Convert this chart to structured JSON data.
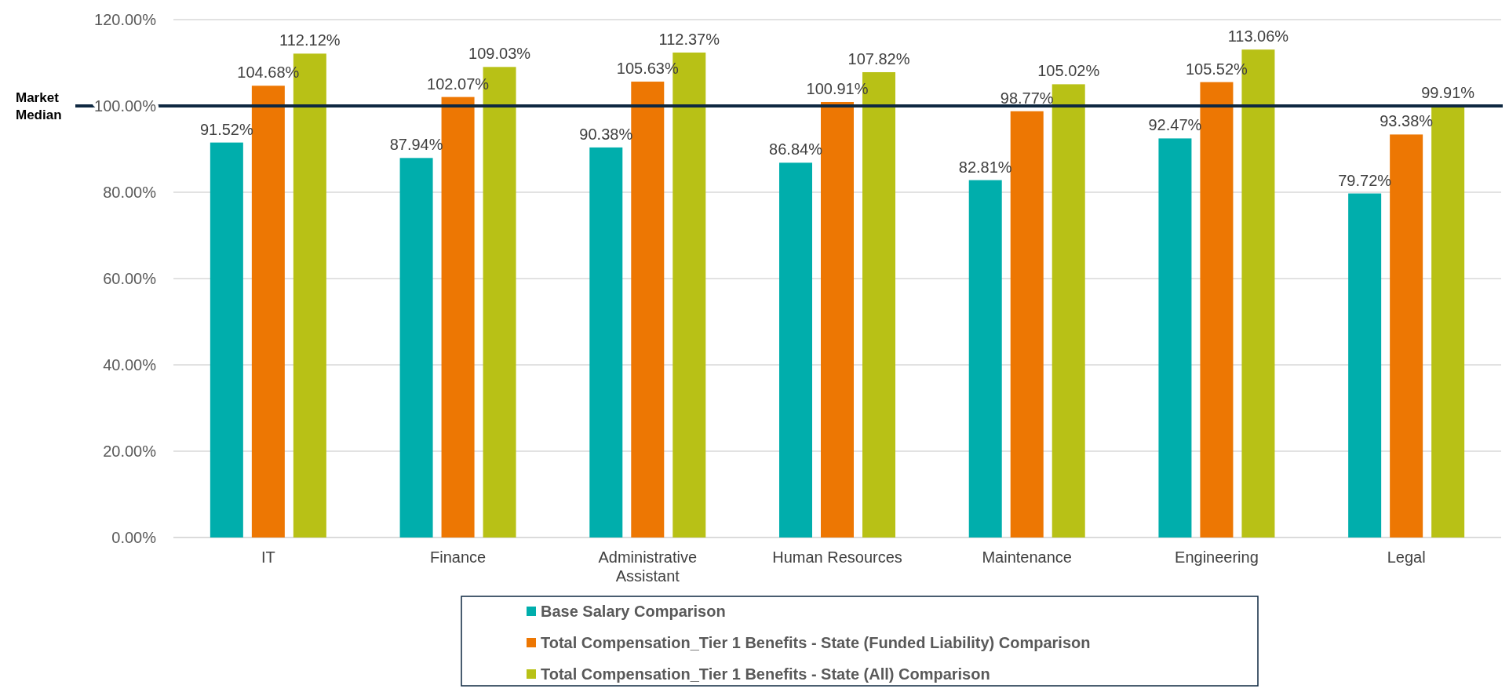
{
  "chart_data": {
    "type": "bar",
    "categories": [
      "IT",
      "Finance",
      "Administrative Assistant",
      "Human Resources",
      "Maintenance",
      "Engineering",
      "Legal"
    ],
    "series": [
      {
        "name": "Base Salary Comparison",
        "color": "#00aeac",
        "values": [
          91.52,
          87.94,
          90.38,
          86.84,
          82.81,
          92.47,
          79.72
        ],
        "value_labels": [
          "91.52%",
          "87.94%",
          "90.38%",
          "86.84%",
          "82.81%",
          "92.47%",
          "79.72%"
        ]
      },
      {
        "name": "Total Compensation_Tier 1 Benefits - State (Funded Liability) Comparison",
        "color": "#ed7703",
        "values": [
          104.68,
          102.07,
          105.63,
          100.91,
          98.77,
          105.52,
          93.38
        ],
        "value_labels": [
          "104.68%",
          "102.07%",
          "105.63%",
          "100.91%",
          "98.77%",
          "105.52%",
          "93.38%"
        ]
      },
      {
        "name": "Total Compensation_Tier 1 Benefits - State (All) Comparison",
        "color": "#b8c116",
        "values": [
          112.12,
          109.03,
          112.37,
          107.82,
          105.02,
          113.06,
          99.91
        ],
        "value_labels": [
          "112.12%",
          "109.03%",
          "112.37%",
          "107.82%",
          "105.02%",
          "113.06%",
          "99.91%"
        ]
      }
    ],
    "ylim": [
      0,
      120
    ],
    "yticks": [
      {
        "value": 0,
        "label": "0.00%"
      },
      {
        "value": 20,
        "label": "20.00%"
      },
      {
        "value": 40,
        "label": "40.00%"
      },
      {
        "value": 60,
        "label": "60.00%"
      },
      {
        "value": 80,
        "label": "80.00%"
      },
      {
        "value": 100,
        "label": "100.00%"
      },
      {
        "value": 120,
        "label": "120.00%"
      }
    ],
    "grid": "y",
    "legend": "bottom",
    "ref_lines": [
      {
        "axis": "y",
        "value": 100,
        "label": "Market Median",
        "color": "#0e2841"
      }
    ]
  }
}
